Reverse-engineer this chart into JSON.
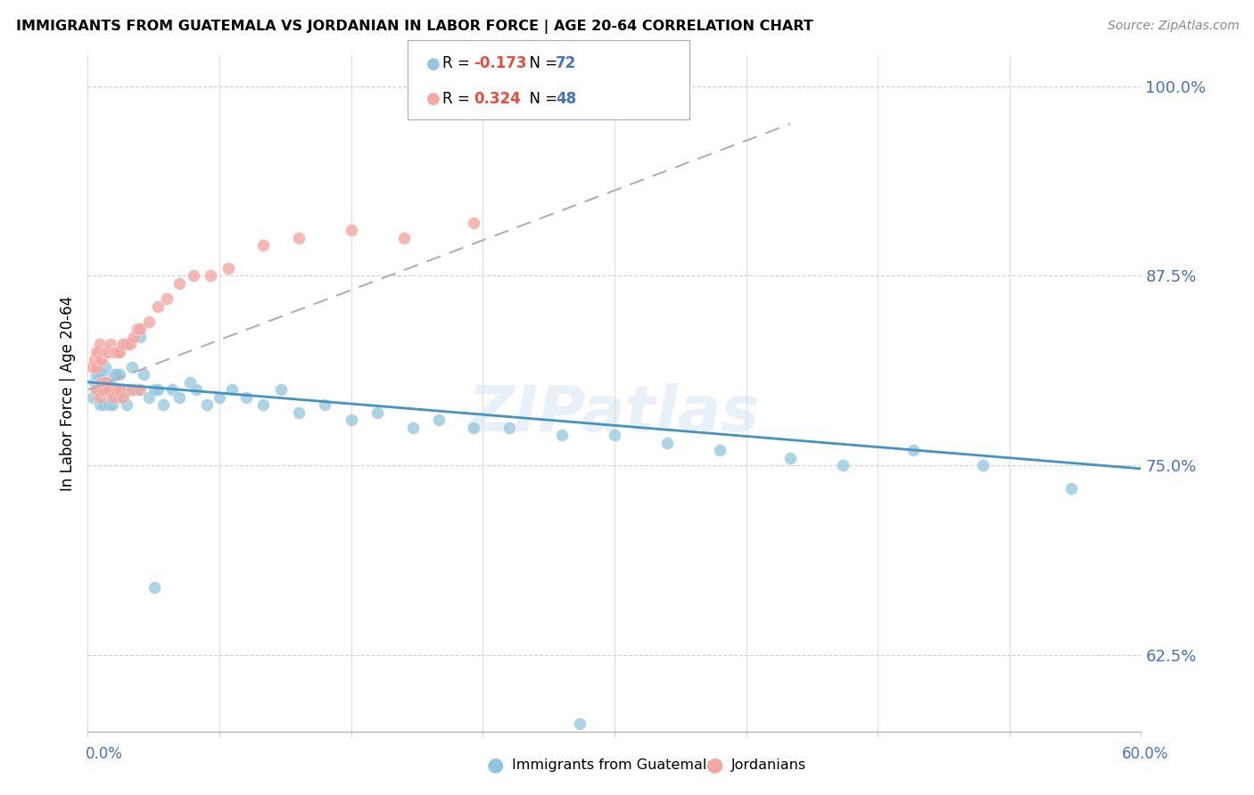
{
  "title": "IMMIGRANTS FROM GUATEMALA VS JORDANIAN IN LABOR FORCE | AGE 20-64 CORRELATION CHART",
  "source": "Source: ZipAtlas.com",
  "ylabel": "In Labor Force | Age 20-64",
  "xlim": [
    0.0,
    0.6
  ],
  "ylim": [
    0.575,
    1.02
  ],
  "ytick_vals": [
    0.625,
    0.75,
    0.875,
    1.0
  ],
  "ytick_labels": [
    "62.5%",
    "75.0%",
    "87.5%",
    "100.0%"
  ],
  "xtick_vals": [
    0.0,
    0.075,
    0.15,
    0.225,
    0.3,
    0.375,
    0.45,
    0.525,
    0.6
  ],
  "blue_color": "#92c5de",
  "pink_color": "#f4a6a0",
  "trend_blue_color": "#4393c3",
  "trend_pink_color": "#c8a0c8",
  "watermark": "ZIPatlas",
  "blue_trend_x0": 0.0,
  "blue_trend_y0": 0.805,
  "blue_trend_x1": 0.6,
  "blue_trend_y1": 0.748,
  "pink_trend_x0": 0.0,
  "pink_trend_y0": 0.8,
  "pink_trend_x1": 0.4,
  "pink_trend_y1": 0.975,
  "legend_r1_val": "-0.173",
  "legend_n1": "72",
  "legend_r2_val": "0.324",
  "legend_n2": "48",
  "guatemala_x": [
    0.003,
    0.004,
    0.005,
    0.005,
    0.006,
    0.006,
    0.007,
    0.007,
    0.008,
    0.008,
    0.009,
    0.009,
    0.01,
    0.01,
    0.01,
    0.011,
    0.011,
    0.012,
    0.012,
    0.013,
    0.013,
    0.014,
    0.014,
    0.015,
    0.015,
    0.016,
    0.016,
    0.017,
    0.018,
    0.019,
    0.02,
    0.021,
    0.022,
    0.023,
    0.025,
    0.027,
    0.028,
    0.03,
    0.032,
    0.035,
    0.038,
    0.04,
    0.043,
    0.048,
    0.052,
    0.058,
    0.062,
    0.068,
    0.075,
    0.082,
    0.09,
    0.1,
    0.11,
    0.12,
    0.135,
    0.15,
    0.165,
    0.185,
    0.2,
    0.22,
    0.24,
    0.27,
    0.3,
    0.33,
    0.36,
    0.4,
    0.43,
    0.47,
    0.51,
    0.56,
    0.038,
    0.28
  ],
  "guatemala_y": [
    0.795,
    0.805,
    0.8,
    0.81,
    0.8,
    0.81,
    0.8,
    0.79,
    0.8,
    0.81,
    0.8,
    0.79,
    0.805,
    0.8,
    0.815,
    0.8,
    0.805,
    0.8,
    0.79,
    0.8,
    0.805,
    0.8,
    0.79,
    0.8,
    0.81,
    0.795,
    0.81,
    0.8,
    0.81,
    0.795,
    0.8,
    0.83,
    0.79,
    0.8,
    0.815,
    0.8,
    0.8,
    0.835,
    0.81,
    0.795,
    0.8,
    0.8,
    0.79,
    0.8,
    0.795,
    0.805,
    0.8,
    0.79,
    0.795,
    0.8,
    0.795,
    0.79,
    0.8,
    0.785,
    0.79,
    0.78,
    0.785,
    0.775,
    0.78,
    0.775,
    0.775,
    0.77,
    0.77,
    0.765,
    0.76,
    0.755,
    0.75,
    0.76,
    0.75,
    0.735,
    0.67,
    0.58
  ],
  "jordan_x": [
    0.003,
    0.004,
    0.005,
    0.005,
    0.006,
    0.007,
    0.007,
    0.008,
    0.009,
    0.01,
    0.011,
    0.012,
    0.013,
    0.014,
    0.015,
    0.016,
    0.017,
    0.018,
    0.02,
    0.022,
    0.024,
    0.026,
    0.028,
    0.03,
    0.035,
    0.04,
    0.045,
    0.052,
    0.06,
    0.07,
    0.08,
    0.1,
    0.12,
    0.15,
    0.18,
    0.22,
    0.005,
    0.007,
    0.008,
    0.009,
    0.01,
    0.012,
    0.014,
    0.016,
    0.018,
    0.02,
    0.025,
    0.03
  ],
  "jordan_y": [
    0.815,
    0.82,
    0.825,
    0.815,
    0.825,
    0.82,
    0.83,
    0.82,
    0.825,
    0.825,
    0.825,
    0.825,
    0.83,
    0.825,
    0.825,
    0.825,
    0.825,
    0.825,
    0.83,
    0.83,
    0.83,
    0.835,
    0.84,
    0.84,
    0.845,
    0.855,
    0.86,
    0.87,
    0.875,
    0.875,
    0.88,
    0.895,
    0.9,
    0.905,
    0.9,
    0.91,
    0.8,
    0.795,
    0.805,
    0.8,
    0.805,
    0.8,
    0.795,
    0.8,
    0.8,
    0.795,
    0.8,
    0.8
  ]
}
